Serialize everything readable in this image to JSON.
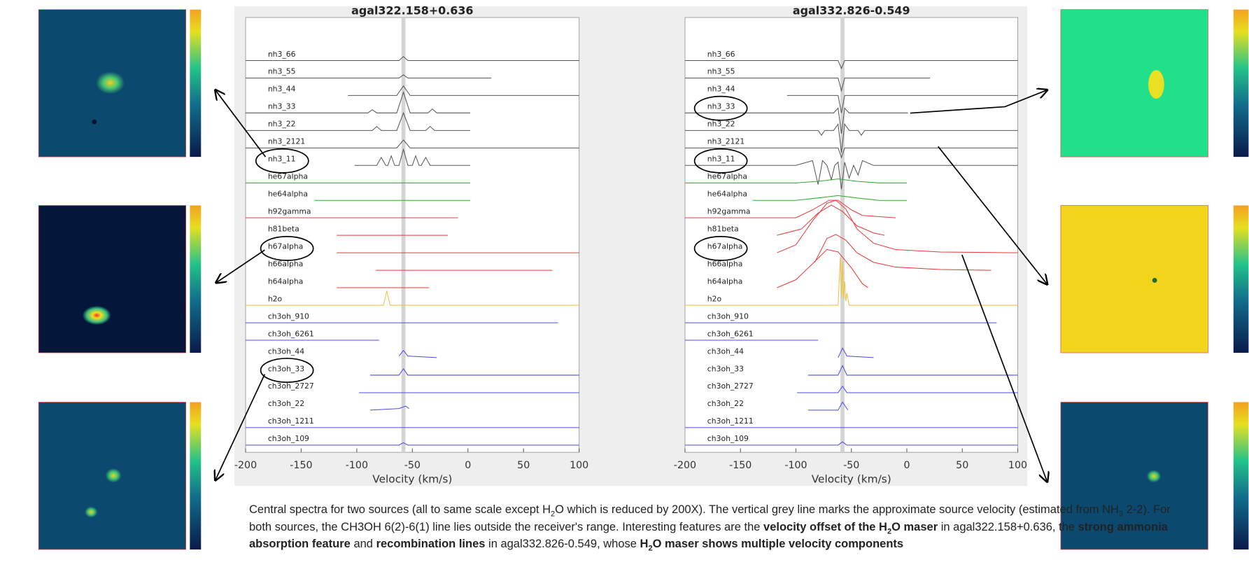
{
  "chart_data": [
    {
      "type": "line",
      "title": "agal322.158+0.636",
      "x_label": "Velocity (km/s)",
      "xlim": [
        -200,
        100
      ],
      "xticks": [
        -200,
        -150,
        -100,
        -50,
        0,
        50,
        100
      ],
      "reference_velocity": -58,
      "series": [
        {
          "name": "nh3_66",
          "color": "#555555",
          "x": [
            -200,
            -62,
            -58,
            -54,
            100
          ],
          "values": [
            0,
            0,
            5,
            0,
            0
          ]
        },
        {
          "name": "nh3_55",
          "color": "#555555",
          "x": [
            -200,
            -62,
            -58,
            -54,
            21
          ],
          "values": [
            0,
            0,
            4,
            0,
            0
          ]
        },
        {
          "name": "nh3_44",
          "color": "#555555",
          "x": [
            -108,
            -64,
            -58,
            -52,
            100
          ],
          "values": [
            0,
            0,
            12,
            0,
            0
          ]
        },
        {
          "name": "nh3_33",
          "color": "#555555",
          "x": [
            -200,
            -90,
            -86,
            -82,
            -64,
            -58,
            -52,
            -36,
            -32,
            -28,
            2
          ],
          "values": [
            0,
            0,
            4,
            0,
            0,
            26,
            0,
            0,
            5,
            0,
            0
          ]
        },
        {
          "name": "nh3_22",
          "color": "#555555",
          "x": [
            -200,
            -86,
            -82,
            -78,
            -64,
            -58,
            -52,
            -38,
            -34,
            -30,
            2
          ],
          "values": [
            0,
            0,
            5,
            0,
            0,
            22,
            0,
            0,
            5,
            0,
            0
          ]
        },
        {
          "name": "nh3_2121",
          "color": "#555555",
          "x": [
            -200,
            -64,
            -58,
            -52,
            100
          ],
          "values": [
            0,
            0,
            10,
            0,
            0
          ]
        },
        {
          "name": "nh3_11",
          "color": "#555555",
          "x": [
            -102,
            -82,
            -78,
            -74,
            -72,
            -69,
            -66,
            -62,
            -58,
            -54,
            -50,
            -47,
            -44,
            -42,
            -38,
            -34,
            2
          ],
          "values": [
            0,
            0,
            10,
            0,
            0,
            12,
            0,
            0,
            20,
            0,
            0,
            12,
            0,
            0,
            10,
            0,
            0
          ]
        },
        {
          "name": "he67alpha",
          "color": "#33aa33",
          "x": [
            -200,
            2
          ],
          "values": [
            0,
            0
          ]
        },
        {
          "name": "he64alpha",
          "color": "#33aa33",
          "x": [
            -138,
            2
          ],
          "values": [
            0,
            0
          ]
        },
        {
          "name": "h92gamma",
          "color": "#e83a3a",
          "x": [
            -200,
            -9
          ],
          "values": [
            0,
            0
          ]
        },
        {
          "name": "h81beta",
          "color": "#e83a3a",
          "x": [
            -118,
            -18
          ],
          "values": [
            0,
            0
          ]
        },
        {
          "name": "h67alpha",
          "color": "#e83a3a",
          "x": [
            -118,
            100
          ],
          "values": [
            0,
            0
          ]
        },
        {
          "name": "h66alpha",
          "color": "#e83a3a",
          "x": [
            -83,
            76
          ],
          "values": [
            0,
            0
          ]
        },
        {
          "name": "h64alpha",
          "color": "#e83a3a",
          "x": [
            -118,
            -35
          ],
          "values": [
            0,
            0
          ]
        },
        {
          "name": "h2o",
          "color": "#f0c040",
          "x": [
            -200,
            -76,
            -73,
            -70,
            100
          ],
          "values": [
            0,
            0,
            18,
            0,
            0
          ]
        },
        {
          "name": "ch3oh_910",
          "color": "#4a4af0",
          "x": [
            -200,
            81
          ],
          "values": [
            0,
            0
          ]
        },
        {
          "name": "ch3oh_6261",
          "color": "#4a4af0",
          "x": [
            -200,
            -80
          ],
          "values": [
            0,
            0
          ]
        },
        {
          "name": "ch3oh_44",
          "color": "#4a4af0",
          "x": [
            -62,
            -58,
            -54,
            -28
          ],
          "values": [
            2,
            9,
            2,
            0
          ]
        },
        {
          "name": "ch3oh_33",
          "color": "#4a4af0",
          "x": [
            -88,
            -62,
            -58,
            -54,
            100
          ],
          "values": [
            0,
            0,
            8,
            0,
            0
          ]
        },
        {
          "name": "ch3oh_2727",
          "color": "#4a4af0",
          "x": [
            -98,
            100
          ],
          "values": [
            0,
            0
          ]
        },
        {
          "name": "ch3oh_22",
          "color": "#4a4af0",
          "x": [
            -88,
            -62,
            -56,
            -53
          ],
          "values": [
            0,
            2,
            5,
            2
          ]
        },
        {
          "name": "ch3oh_1211",
          "color": "#4a4af0",
          "x": [
            -200,
            100
          ],
          "values": [
            0,
            0
          ]
        },
        {
          "name": "ch3oh_109",
          "color": "#4a4af0",
          "x": [
            -200,
            -62,
            -58,
            -54,
            100
          ],
          "values": [
            0,
            0,
            3,
            0,
            0
          ]
        }
      ]
    },
    {
      "type": "line",
      "title": "agal332.826-0.549",
      "x_label": "Velocity (km/s)",
      "xlim": [
        -200,
        100
      ],
      "xticks": [
        -200,
        -150,
        -100,
        -50,
        0,
        50,
        100
      ],
      "reference_velocity": -58,
      "series": [
        {
          "name": "nh3_66",
          "color": "#555555",
          "x": [
            -200,
            -62,
            -59,
            -56,
            100
          ],
          "values": [
            0,
            0,
            -10,
            0,
            0
          ]
        },
        {
          "name": "nh3_55",
          "color": "#555555",
          "x": [
            -200,
            -62,
            -59,
            -56,
            21
          ],
          "values": [
            0,
            0,
            -16,
            0,
            0
          ]
        },
        {
          "name": "nh3_44",
          "color": "#555555",
          "x": [
            -108,
            -62,
            -59,
            -56,
            100
          ],
          "values": [
            0,
            0,
            -22,
            0,
            0
          ]
        },
        {
          "name": "nh3_33",
          "color": "#555555",
          "x": [
            -200,
            -66,
            -62,
            -59,
            -56,
            -52,
            1
          ],
          "values": [
            0,
            0,
            6,
            -26,
            6,
            0,
            0
          ]
        },
        {
          "name": "nh3_22",
          "color": "#555555",
          "x": [
            -200,
            -80,
            -77,
            -74,
            -66,
            -62,
            -59,
            -56,
            -52,
            -44,
            -41,
            -38,
            100
          ],
          "values": [
            0,
            0,
            -6,
            0,
            0,
            8,
            -28,
            8,
            0,
            0,
            -6,
            0,
            0
          ]
        },
        {
          "name": "nh3_2121",
          "color": "#555555",
          "x": [
            -200,
            -62,
            -59,
            -56,
            100
          ],
          "values": [
            0,
            0,
            -12,
            0,
            0
          ]
        },
        {
          "name": "nh3_11",
          "color": "#555555",
          "x": [
            -200,
            -100,
            -85,
            -80,
            -76,
            -72,
            -68,
            -65,
            -62,
            -59,
            -56,
            -52,
            -48,
            -44,
            -40,
            -30,
            100
          ],
          "values": [
            0,
            0,
            6,
            -24,
            6,
            0,
            -18,
            0,
            4,
            -30,
            4,
            -16,
            0,
            -12,
            6,
            0,
            0
          ]
        },
        {
          "name": "he67alpha",
          "color": "#33aa33",
          "x": [
            -200,
            -100,
            -80,
            -62,
            -45,
            -25,
            0
          ],
          "values": [
            0,
            0,
            2,
            5,
            2,
            0,
            0
          ]
        },
        {
          "name": "he64alpha",
          "color": "#33aa33",
          "x": [
            -139,
            -100,
            -80,
            -62,
            -45,
            -25,
            0
          ],
          "values": [
            0,
            0,
            3,
            6,
            3,
            0,
            0
          ]
        },
        {
          "name": "h92gamma",
          "color": "#e83a3a",
          "x": [
            -200,
            -100,
            -85,
            -70,
            -62,
            -50,
            -40,
            -10
          ],
          "values": [
            0,
            0,
            10,
            22,
            22,
            10,
            3,
            0
          ]
        },
        {
          "name": "h81beta",
          "color": "#e83a3a",
          "x": [
            -117,
            -95,
            -80,
            -68,
            -58,
            -45,
            -30,
            -20
          ],
          "values": [
            0,
            8,
            28,
            38,
            30,
            12,
            3,
            0
          ]
        },
        {
          "name": "h67alpha",
          "color": "#e83a3a",
          "x": [
            -117,
            -100,
            -85,
            -72,
            -64,
            -55,
            -45,
            -30,
            -10,
            30,
            100
          ],
          "values": [
            0,
            10,
            40,
            62,
            66,
            55,
            30,
            12,
            4,
            1,
            0
          ]
        },
        {
          "name": "h66alpha",
          "color": "#e83a3a",
          "x": [
            -83,
            -72,
            -64,
            -55,
            -45,
            -30,
            -10,
            30,
            76
          ],
          "values": [
            10,
            40,
            45,
            38,
            22,
            10,
            4,
            1,
            0
          ]
        },
        {
          "name": "h64alpha",
          "color": "#e83a3a",
          "x": [
            -117,
            -100,
            -85,
            -72,
            -62,
            -50,
            -40,
            -35
          ],
          "values": [
            0,
            10,
            30,
            48,
            45,
            25,
            5,
            0
          ]
        },
        {
          "name": "h2o",
          "color": "#f0c040",
          "x": [
            -200,
            -62,
            -60,
            -59,
            -58,
            -57,
            -56,
            -55,
            -54,
            -52,
            100
          ],
          "values": [
            0,
            0,
            60,
            10,
            55,
            8,
            30,
            5,
            15,
            0,
            0
          ]
        },
        {
          "name": "ch3oh_910",
          "color": "#4a4af0",
          "x": [
            -200,
            81
          ],
          "values": [
            0,
            0
          ]
        },
        {
          "name": "ch3oh_6261",
          "color": "#4a4af0",
          "x": [
            -200,
            -80
          ],
          "values": [
            0,
            0
          ]
        },
        {
          "name": "ch3oh_44",
          "color": "#4a4af0",
          "x": [
            -62,
            -58,
            -54,
            -30
          ],
          "values": [
            0,
            12,
            2,
            0
          ]
        },
        {
          "name": "ch3oh_33",
          "color": "#4a4af0",
          "x": [
            -89,
            -62,
            -58,
            -54,
            100
          ],
          "values": [
            0,
            0,
            12,
            0,
            0
          ]
        },
        {
          "name": "ch3oh_2727",
          "color": "#4a4af0",
          "x": [
            -99,
            -62,
            -58,
            -54,
            100
          ],
          "values": [
            0,
            0,
            8,
            0,
            0
          ]
        },
        {
          "name": "ch3oh_22",
          "color": "#4a4af0",
          "x": [
            -89,
            -62,
            -58,
            -54,
            -53
          ],
          "values": [
            0,
            0,
            10,
            2,
            0
          ]
        },
        {
          "name": "ch3oh_1211",
          "color": "#4a4af0",
          "x": [
            -200,
            100
          ],
          "values": [
            0,
            0
          ]
        },
        {
          "name": "ch3oh_109",
          "color": "#4a4af0",
          "x": [
            -200,
            -62,
            -58,
            -54,
            100
          ],
          "values": [
            0,
            0,
            4,
            0,
            0
          ]
        }
      ]
    }
  ],
  "caption": [
    {
      "text": "Central spectra for two sources (all to same scale except H"
    },
    {
      "text": "2",
      "sub": true
    },
    {
      "text": "O which is reduced by 200X). The vertical grey line marks the approximate source velocity (estimated from NH"
    },
    {
      "text": "3",
      "sub": true
    },
    {
      "text": " 2-2).  For both sources, the CH3OH 6(2)-6(1) line lies outside the receiver's range. Interesting features are the "
    },
    {
      "text": "velocity offset of the H",
      "bold": true
    },
    {
      "text": "2",
      "bold": true,
      "sub": true
    },
    {
      "text": "O maser",
      "bold": true
    },
    {
      "text": " in agal322.158+0.636, the "
    },
    {
      "text": "strong ammonia absorption feature",
      "bold": true
    },
    {
      "text": " and "
    },
    {
      "text": "recombination lines",
      "bold": true
    },
    {
      "text": " in agal332.826-0.549, whose "
    },
    {
      "text": "H",
      "bold": true
    },
    {
      "text": "2",
      "bold": true,
      "sub": true
    },
    {
      "text": "O maser shows multiple velocity components",
      "bold": true
    }
  ]
}
